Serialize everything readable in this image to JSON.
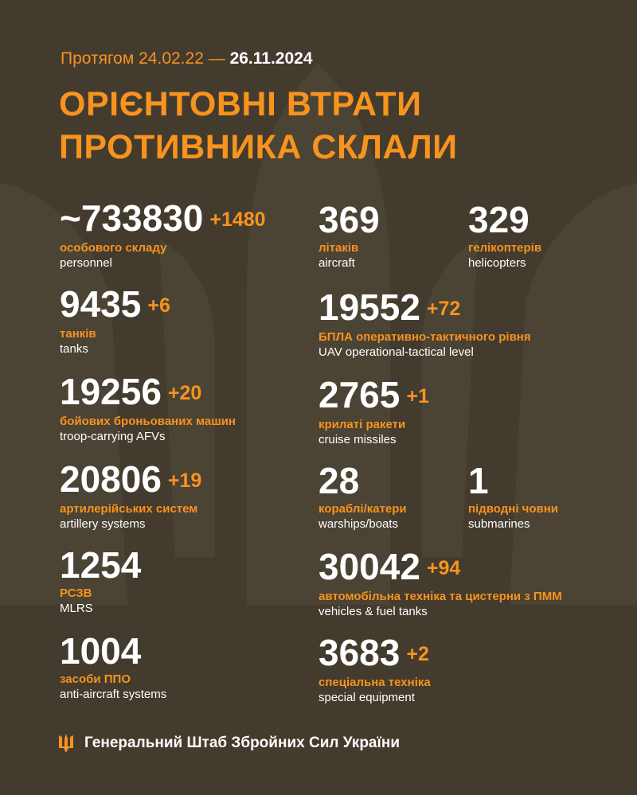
{
  "header": {
    "period_prefix": "Протягом 24.02.22 —",
    "period_date": "26.11.2024",
    "title_line1": "ОРІЄНТОВНІ ВТРАТИ",
    "title_line2": "ПРОТИВНИКА СКЛАЛИ"
  },
  "stats": [
    {
      "value": "~733830",
      "delta": "+1480",
      "ua": "особового складу",
      "en": "personnel"
    },
    {
      "value": "9435",
      "delta": "+6",
      "ua": "танків",
      "en": "tanks"
    },
    {
      "value": "19256",
      "delta": "+20",
      "ua": "бойових броньованих машин",
      "en": "troop-carrying AFVs"
    },
    {
      "value": "20806",
      "delta": "+19",
      "ua": "артилерійських систем",
      "en": "artillery systems"
    },
    {
      "value": "1254",
      "delta": "",
      "ua": "РСЗВ",
      "en": "MLRS"
    },
    {
      "value": "1004",
      "delta": "",
      "ua": "засоби ППО",
      "en": "anti-aircraft systems"
    },
    {
      "value": "369",
      "delta": "",
      "ua": "літаків",
      "en": "aircraft"
    },
    {
      "value": "329",
      "delta": "",
      "ua": "гелікоптерів",
      "en": "helicopters"
    },
    {
      "value": "19552",
      "delta": "+72",
      "ua": "БПЛА оперативно-тактичного рівня",
      "en": "UAV operational-tactical level"
    },
    {
      "value": "2765",
      "delta": "+1",
      "ua": "крилаті ракети",
      "en": "cruise missiles"
    },
    {
      "value": "28",
      "delta": "",
      "ua": "кораблі/катери",
      "en": "warships/boats"
    },
    {
      "value": "1",
      "delta": "",
      "ua": "підводні човни",
      "en": "submarines"
    },
    {
      "value": "30042",
      "delta": "+94",
      "ua": "автомобільна техніка та цистерни з ПММ",
      "en": "vehicles & fuel tanks"
    },
    {
      "value": "3683",
      "delta": "+2",
      "ua": "спеціальна техніка",
      "en": "special equipment"
    }
  ],
  "footer": {
    "icon": "trident-icon",
    "text": "Генеральний Штаб Збройних Сил України"
  },
  "colors": {
    "background": "#433b2e",
    "accent": "#f7931e",
    "text": "#ffffff"
  }
}
